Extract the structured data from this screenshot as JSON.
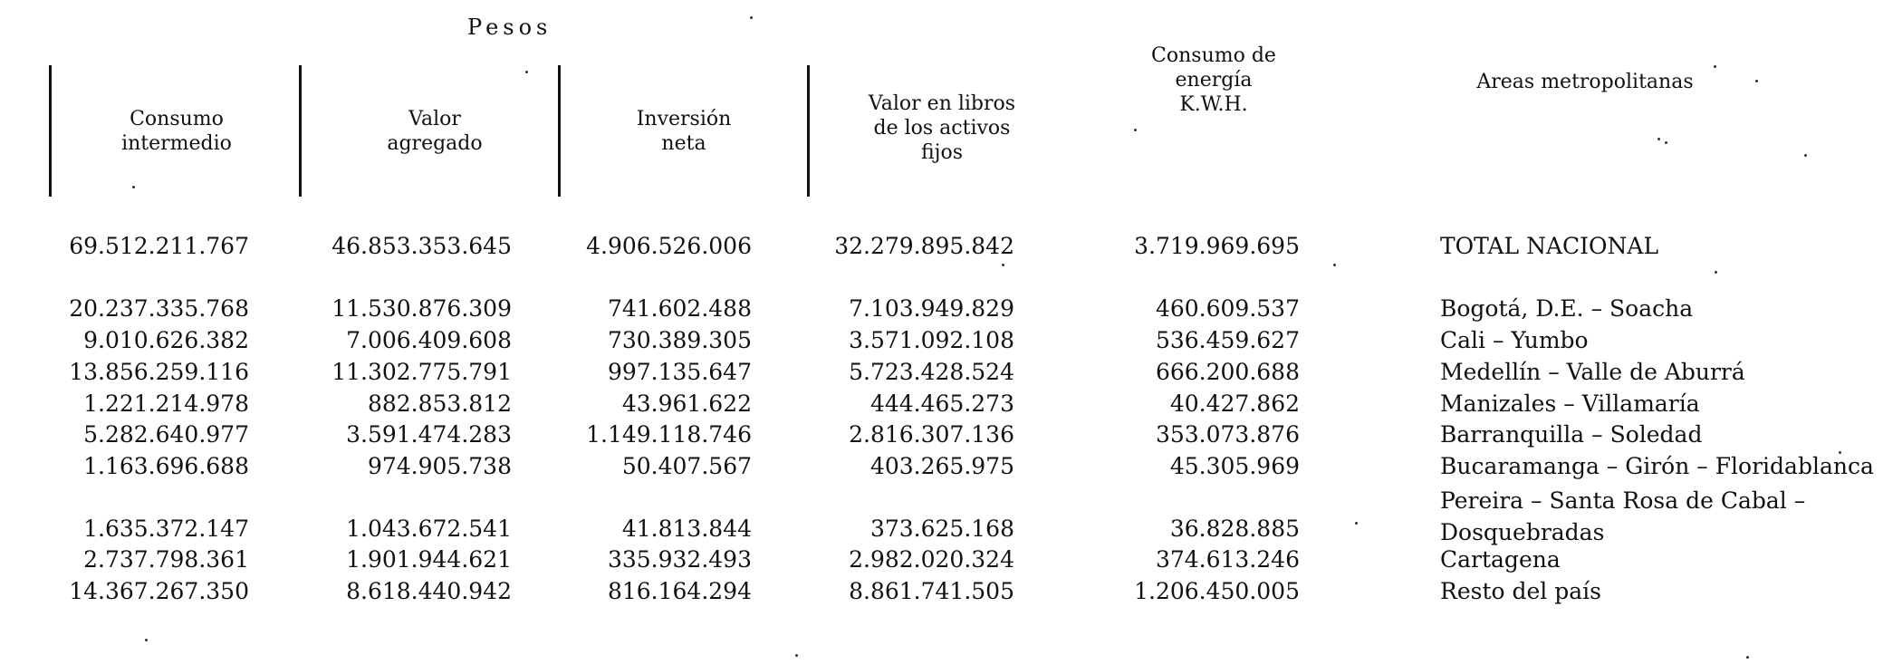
{
  "header": {
    "pesos": "Pesos",
    "columns": [
      "Consumo\nintermedio",
      "Valor\nagregado",
      "Inversión\nneta",
      "Valor en libros\nde los activos\nfijos",
      "Consumo de\nenergía\nK.W.H.",
      "Areas metropolitanas"
    ]
  },
  "rows": [
    {
      "consumo_intermedio": "69.512.211.767",
      "valor_agregado": "46.853.353.645",
      "inversion_neta": "4.906.526.006",
      "valor_libros": "32.279.895.842",
      "consumo_energia": "3.719.969.695",
      "area": "TOTAL NACIONAL"
    },
    {
      "consumo_intermedio": "20.237.335.768",
      "valor_agregado": "11.530.876.309",
      "inversion_neta": "741.602.488",
      "valor_libros": "7.103.949.829",
      "consumo_energia": "460.609.537",
      "area": "Bogotá, D.E. – Soacha"
    },
    {
      "consumo_intermedio": "9.010.626.382",
      "valor_agregado": "7.006.409.608",
      "inversion_neta": "730.389.305",
      "valor_libros": "3.571.092.108",
      "consumo_energia": "536.459.627",
      "area": "Cali – Yumbo"
    },
    {
      "consumo_intermedio": "13.856.259.116",
      "valor_agregado": "11.302.775.791",
      "inversion_neta": "997.135.647",
      "valor_libros": "5.723.428.524",
      "consumo_energia": "666.200.688",
      "area": "Medellín – Valle de Aburrá"
    },
    {
      "consumo_intermedio": "1.221.214.978",
      "valor_agregado": "882.853.812",
      "inversion_neta": "43.961.622",
      "valor_libros": "444.465.273",
      "consumo_energia": "40.427.862",
      "area": "Manizales – Villamaría"
    },
    {
      "consumo_intermedio": "5.282.640.977",
      "valor_agregado": "3.591.474.283",
      "inversion_neta": "1.149.118.746",
      "valor_libros": "2.816.307.136",
      "consumo_energia": "353.073.876",
      "area": "Barranquilla – Soledad"
    },
    {
      "consumo_intermedio": "1.163.696.688",
      "valor_agregado": "974.905.738",
      "inversion_neta": "50.407.567",
      "valor_libros": "403.265.975",
      "consumo_energia": "45.305.969",
      "area": "Bucaramanga – Girón – Floridablanca"
    },
    {
      "consumo_intermedio": "1.635.372.147",
      "valor_agregado": "1.043.672.541",
      "inversion_neta": "41.813.844",
      "valor_libros": "373.625.168",
      "consumo_energia": "36.828.885",
      "area": "Pereira – Santa Rosa de Cabal –\nDosquebradas"
    },
    {
      "consumo_intermedio": "2.737.798.361",
      "valor_agregado": "1.901.944.621",
      "inversion_neta": "335.932.493",
      "valor_libros": "2.982.020.324",
      "consumo_energia": "374.613.246",
      "area": "Cartagena"
    },
    {
      "consumo_intermedio": "14.367.267.350",
      "valor_agregado": "8.618.440.942",
      "inversion_neta": "816.164.294",
      "valor_libros": "8.861.741.505",
      "consumo_energia": "1.206.450.005",
      "area": "Resto del país"
    }
  ]
}
